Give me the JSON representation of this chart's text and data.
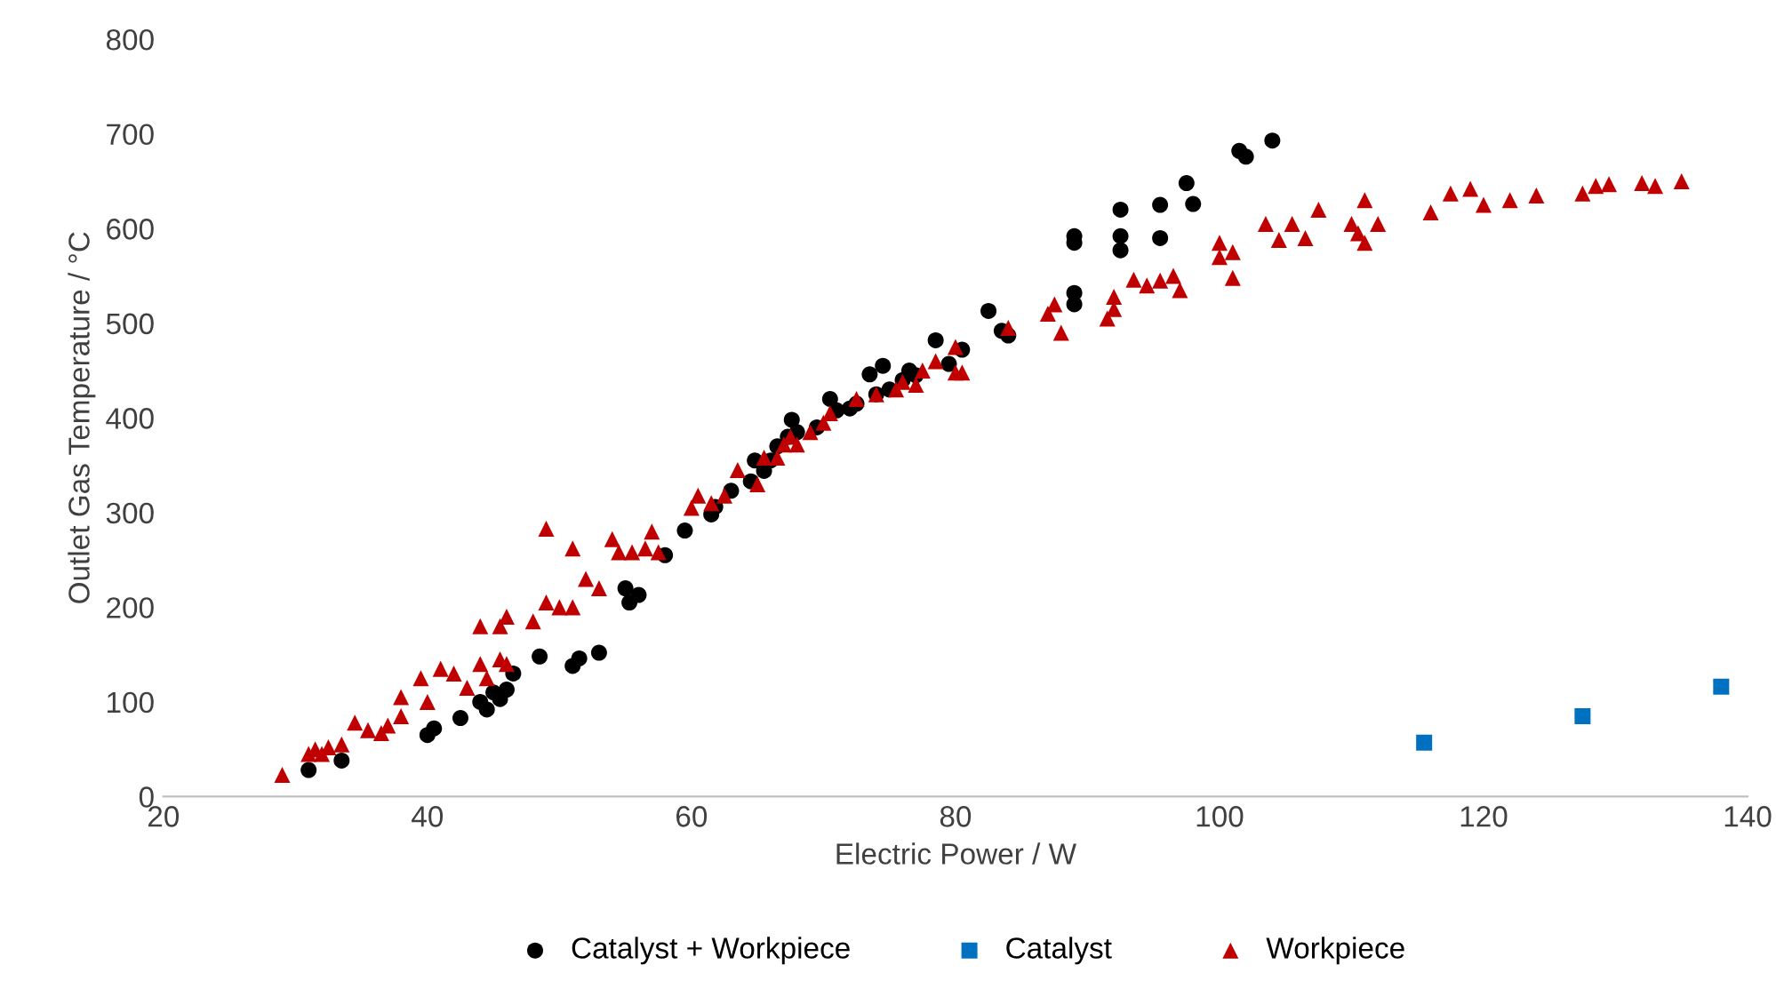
{
  "chart_data": {
    "type": "scatter",
    "xlabel": "Electric Power / W",
    "ylabel": "Outlet Gas Temperature / °C",
    "xlim": [
      20,
      140
    ],
    "xticks": [
      20,
      40,
      60,
      80,
      100,
      120,
      140
    ],
    "ylim": [
      0,
      800
    ],
    "yticks": [
      0,
      100,
      200,
      300,
      400,
      500,
      600,
      700,
      800
    ],
    "grid": false,
    "legend": "bottom",
    "series": [
      {
        "name": "Catalyst + Workpiece",
        "color": "#000000",
        "marker": "circle",
        "x": [
          31,
          33.5,
          40,
          40.5,
          42.5,
          44,
          44.5,
          45,
          45.5,
          46,
          46.5,
          48.5,
          51,
          51.5,
          53,
          55,
          55.3,
          56,
          58,
          59.5,
          61.5,
          61.8,
          63,
          64.5,
          64.8,
          65.5,
          66,
          66.5,
          67.3,
          67.6,
          68,
          69.5,
          70.5,
          71,
          72,
          72.5,
          73.5,
          74,
          74.5,
          75,
          76,
          76.5,
          77,
          78.5,
          79.5,
          80.5,
          82.5,
          83.5,
          84,
          89,
          89,
          89,
          89,
          92.5,
          92.5,
          92.5,
          95.5,
          95.5,
          97.5,
          98,
          101.5,
          102,
          104
        ],
        "values": [
          28,
          38,
          65,
          72,
          83,
          100,
          92,
          110,
          103,
          113,
          130,
          148,
          138,
          146,
          152,
          220,
          205,
          213,
          255,
          281,
          298,
          306,
          323,
          333,
          355,
          344,
          355,
          370,
          380,
          398,
          385,
          390,
          420,
          408,
          410,
          415,
          446,
          425,
          455,
          430,
          440,
          450,
          445,
          482,
          457,
          472,
          513,
          492,
          487,
          532,
          520,
          585,
          592,
          620,
          592,
          577,
          625,
          590,
          648,
          626,
          682,
          676,
          693
        ]
      },
      {
        "name": "Catalyst",
        "color": "#0070c0",
        "marker": "square",
        "x": [
          115.5,
          127.5,
          138
        ],
        "values": [
          57,
          85,
          116
        ]
      },
      {
        "name": "Workpiece",
        "color": "#c00000",
        "marker": "triangle",
        "x": [
          29,
          31,
          31.5,
          32,
          32.5,
          33.5,
          34.5,
          35.5,
          36.5,
          37,
          38,
          38,
          39.5,
          40,
          41,
          42,
          43,
          44,
          44,
          44.5,
          45.5,
          45.5,
          46,
          46,
          48,
          49,
          49,
          50,
          51,
          51,
          52,
          53,
          54,
          54.5,
          55.5,
          56.5,
          57,
          57.5,
          60,
          60.5,
          61.5,
          62.5,
          63.5,
          65,
          65.5,
          66.5,
          67,
          67.5,
          68,
          69,
          70,
          70.5,
          72.5,
          74,
          75.5,
          76,
          77,
          77.5,
          78.5,
          80,
          80,
          80.5,
          84,
          87,
          87.5,
          88,
          91.5,
          92,
          92,
          93.5,
          94.5,
          95.5,
          96.5,
          97,
          100,
          100,
          101,
          101,
          103.5,
          104.5,
          105.5,
          106.5,
          107.5,
          110,
          110.5,
          111,
          111,
          112,
          116,
          117.5,
          119,
          120,
          122,
          124,
          127.5,
          128.5,
          129.5,
          132,
          133,
          135
        ],
        "values": [
          23,
          45,
          50,
          45,
          52,
          55,
          78,
          70,
          67,
          75,
          85,
          105,
          125,
          100,
          135,
          130,
          115,
          140,
          180,
          125,
          145,
          180,
          190,
          140,
          185,
          283,
          205,
          200,
          262,
          200,
          230,
          220,
          272,
          258,
          258,
          262,
          280,
          258,
          305,
          318,
          310,
          318,
          345,
          330,
          358,
          358,
          372,
          380,
          372,
          385,
          395,
          405,
          420,
          425,
          430,
          438,
          435,
          450,
          460,
          448,
          475,
          448,
          495,
          510,
          520,
          490,
          505,
          515,
          528,
          546,
          540,
          545,
          550,
          535,
          585,
          570,
          548,
          575,
          605,
          588,
          605,
          590,
          620,
          605,
          595,
          630,
          585,
          605,
          617,
          637,
          642,
          625,
          630,
          635,
          637,
          645,
          647,
          648,
          645,
          650
        ]
      }
    ]
  }
}
